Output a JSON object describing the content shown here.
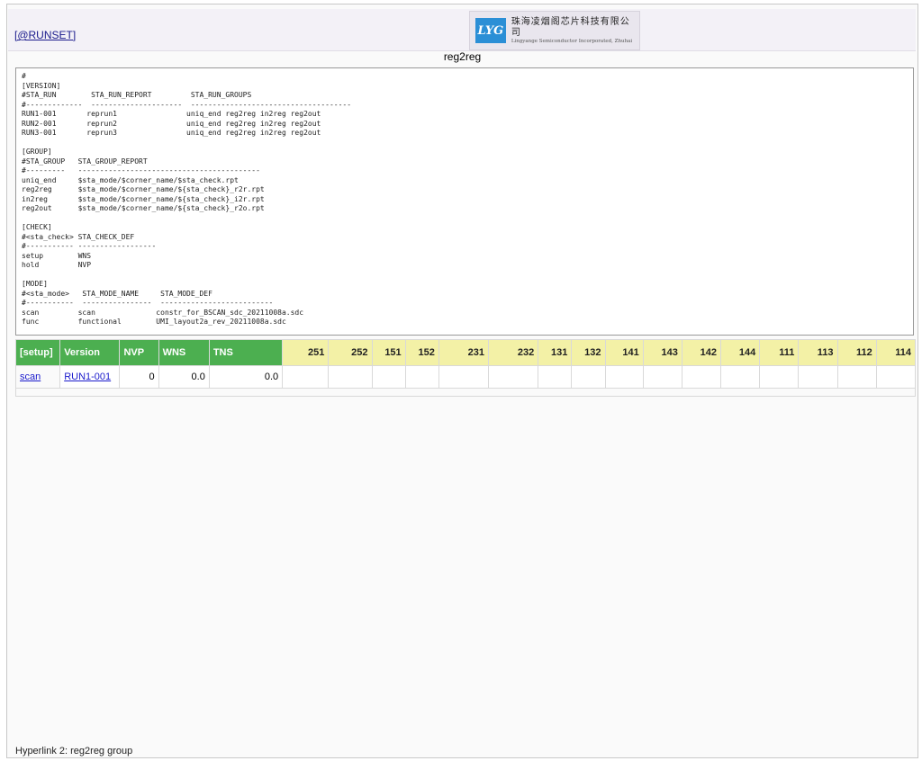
{
  "header": {
    "runset_link": "[@RUNSET]",
    "logo_mark": "LYG",
    "logo_cn": "珠海凌烟阁芯片科技有限公司",
    "logo_en": "Lingyange Semiconductor Incorporated, Zhuhai"
  },
  "page_title": "reg2reg",
  "config_text": "#\n[VERSION]\n#STA_RUN        STA_RUN_REPORT         STA_RUN_GROUPS\n#-------------  ---------------------  -------------------------------------\nRUN1-001       reprun1                uniq_end reg2reg in2reg reg2out\nRUN2-001       reprun2                uniq_end reg2reg in2reg reg2out\nRUN3-001       reprun3                uniq_end reg2reg in2reg reg2out\n\n[GROUP]\n#STA_GROUP   STA_GROUP_REPORT\n#---------   ------------------------------------------\nuniq_end     $sta_mode/$corner_name/$sta_check.rpt\nreg2reg      $sta_mode/$corner_name/${sta_check}_r2r.rpt\nin2reg       $sta_mode/$corner_name/${sta_check}_i2r.rpt\nreg2out      $sta_mode/$corner_name/${sta_check}_r2o.rpt\n\n[CHECK]\n#<sta_check> STA_CHECK_DEF\n#----------- ------------------\nsetup        WNS\nhold         NVP\n\n[MODE]\n#<sta_mode>   STA_MODE_NAME     STA_MODE_DEF\n#-----------  ----------------  --------------------------\nscan         scan              constr_for_BSCAN_sdc_20211008a.sdc\nfunc         functional        UMI_layout2a_rev_20211008a.sdc",
  "columns": [
    "Version",
    "NVP",
    "WNS",
    "TNS",
    "251",
    "252",
    "151",
    "152",
    "231",
    "232",
    "131",
    "132",
    "141",
    "143",
    "142",
    "144",
    "111",
    "113",
    "112",
    "114"
  ],
  "setup": {
    "label": "[setup]",
    "groups": [
      {
        "name": "scan",
        "rows": [
          {
            "ver": "RUN1-001",
            "nvp": "0",
            "wns": "0.0",
            "tns": "0.0"
          }
        ]
      }
    ]
  },
  "footer": "Hyperlink 2: reg2reg group"
}
